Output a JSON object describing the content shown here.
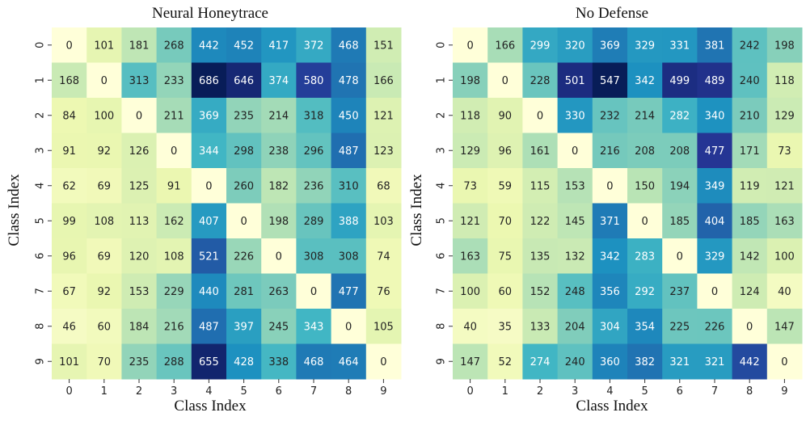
{
  "chart_data": [
    {
      "type": "heatmap",
      "title": "Neural Honeytrace",
      "xlabel": "Class Index",
      "ylabel": "Class Index",
      "x_ticks": [
        "0",
        "1",
        "2",
        "3",
        "4",
        "5",
        "6",
        "7",
        "8",
        "9"
      ],
      "y_ticks": [
        "0",
        "1",
        "2",
        "3",
        "4",
        "5",
        "6",
        "7",
        "8",
        "9"
      ],
      "colormap": "YlGnBu",
      "vmin": 0,
      "vmax": 686,
      "values": [
        [
          0,
          101,
          181,
          268,
          442,
          452,
          417,
          372,
          468,
          151
        ],
        [
          168,
          0,
          313,
          233,
          686,
          646,
          374,
          580,
          478,
          166
        ],
        [
          84,
          100,
          0,
          211,
          369,
          235,
          214,
          318,
          450,
          121
        ],
        [
          91,
          92,
          126,
          0,
          344,
          298,
          238,
          296,
          487,
          123
        ],
        [
          62,
          69,
          125,
          91,
          0,
          260,
          182,
          236,
          310,
          68
        ],
        [
          99,
          108,
          113,
          162,
          407,
          0,
          198,
          289,
          388,
          103
        ],
        [
          96,
          69,
          120,
          108,
          521,
          226,
          0,
          308,
          308,
          74
        ],
        [
          67,
          92,
          153,
          229,
          440,
          281,
          263,
          0,
          477,
          76
        ],
        [
          46,
          60,
          184,
          216,
          487,
          397,
          245,
          343,
          0,
          105
        ],
        [
          101,
          70,
          235,
          288,
          655,
          428,
          338,
          468,
          464,
          0
        ]
      ]
    },
    {
      "type": "heatmap",
      "title": "No Defense",
      "xlabel": "Class Index",
      "ylabel": "Class Index",
      "x_ticks": [
        "0",
        "1",
        "2",
        "3",
        "4",
        "5",
        "6",
        "7",
        "8",
        "9"
      ],
      "y_ticks": [
        "0",
        "1",
        "2",
        "3",
        "4",
        "5",
        "6",
        "7",
        "8",
        "9"
      ],
      "colormap": "YlGnBu",
      "vmin": 0,
      "vmax": 547,
      "values": [
        [
          0,
          166,
          299,
          320,
          369,
          329,
          331,
          381,
          242,
          198
        ],
        [
          198,
          0,
          228,
          501,
          547,
          342,
          499,
          489,
          240,
          118
        ],
        [
          118,
          90,
          0,
          330,
          232,
          214,
          282,
          340,
          210,
          129
        ],
        [
          129,
          96,
          161,
          0,
          216,
          208,
          208,
          477,
          171,
          73
        ],
        [
          73,
          59,
          115,
          153,
          0,
          150,
          194,
          349,
          119,
          121
        ],
        [
          121,
          70,
          122,
          145,
          371,
          0,
          185,
          404,
          185,
          163
        ],
        [
          163,
          75,
          135,
          132,
          342,
          283,
          0,
          329,
          142,
          100
        ],
        [
          100,
          60,
          152,
          248,
          356,
          292,
          237,
          0,
          124,
          40
        ],
        [
          40,
          35,
          133,
          204,
          304,
          354,
          225,
          226,
          0,
          147
        ],
        [
          147,
          52,
          274,
          240,
          360,
          382,
          321,
          321,
          442,
          0
        ]
      ]
    }
  ]
}
